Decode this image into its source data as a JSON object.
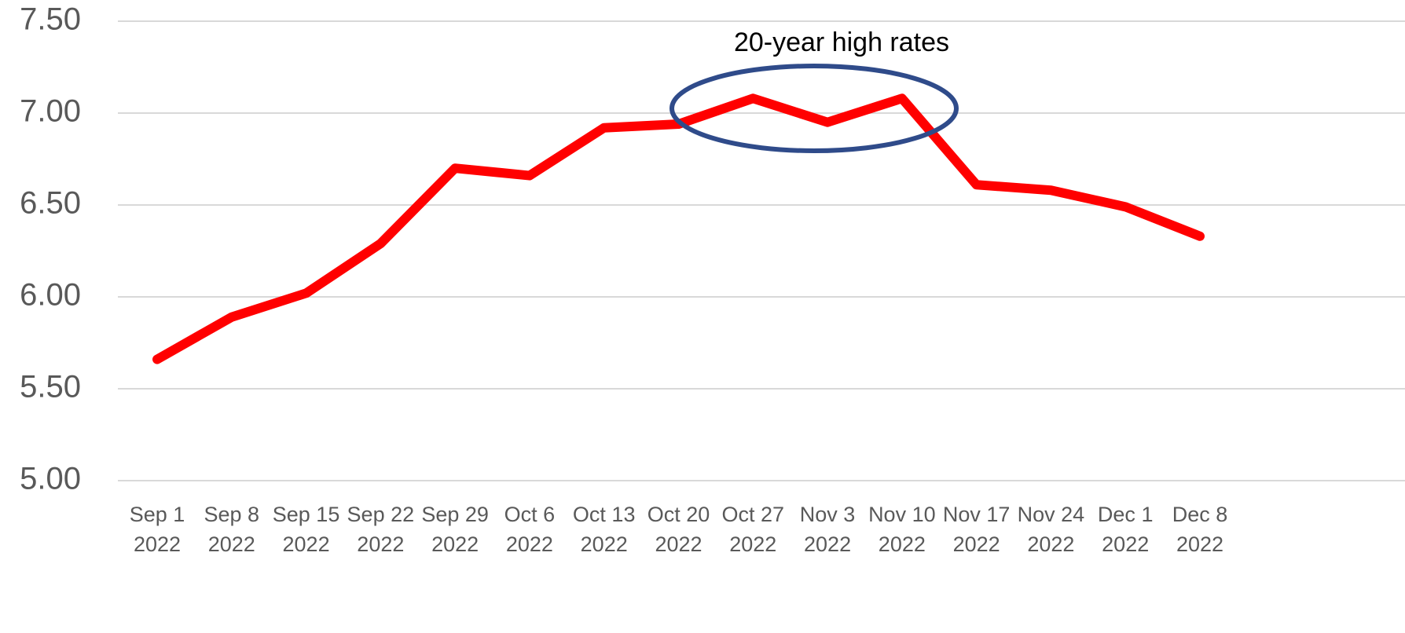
{
  "chart_data": {
    "type": "line",
    "annotation": "20-year high rates",
    "categories": [
      "Sep 1 2022",
      "Sep 8 2022",
      "Sep 15 2022",
      "Sep 22 2022",
      "Sep 29 2022",
      "Oct 6 2022",
      "Oct 13 2022",
      "Oct 20 2022",
      "Oct 27 2022",
      "Nov 3 2022",
      "Nov 10 2022",
      "Nov 17 2022",
      "Nov 24 2022",
      "Dec 1 2022",
      "Dec 8 2022"
    ],
    "values": [
      5.66,
      5.89,
      6.02,
      6.29,
      6.7,
      6.66,
      6.92,
      6.94,
      7.08,
      6.95,
      7.08,
      6.61,
      6.58,
      6.49,
      6.33
    ],
    "color": "#ff0000",
    "ylim": [
      5.0,
      7.5
    ],
    "yticks": [
      {
        "value": 5,
        "label": "5.00"
      },
      {
        "value": 5.5,
        "label": "5.50"
      },
      {
        "value": 6,
        "label": "6.00"
      },
      {
        "value": 6.5,
        "label": "6.50"
      },
      {
        "value": 7,
        "label": "7.00"
      },
      {
        "value": 7.5,
        "label": "7.50"
      }
    ],
    "grid": true
  }
}
